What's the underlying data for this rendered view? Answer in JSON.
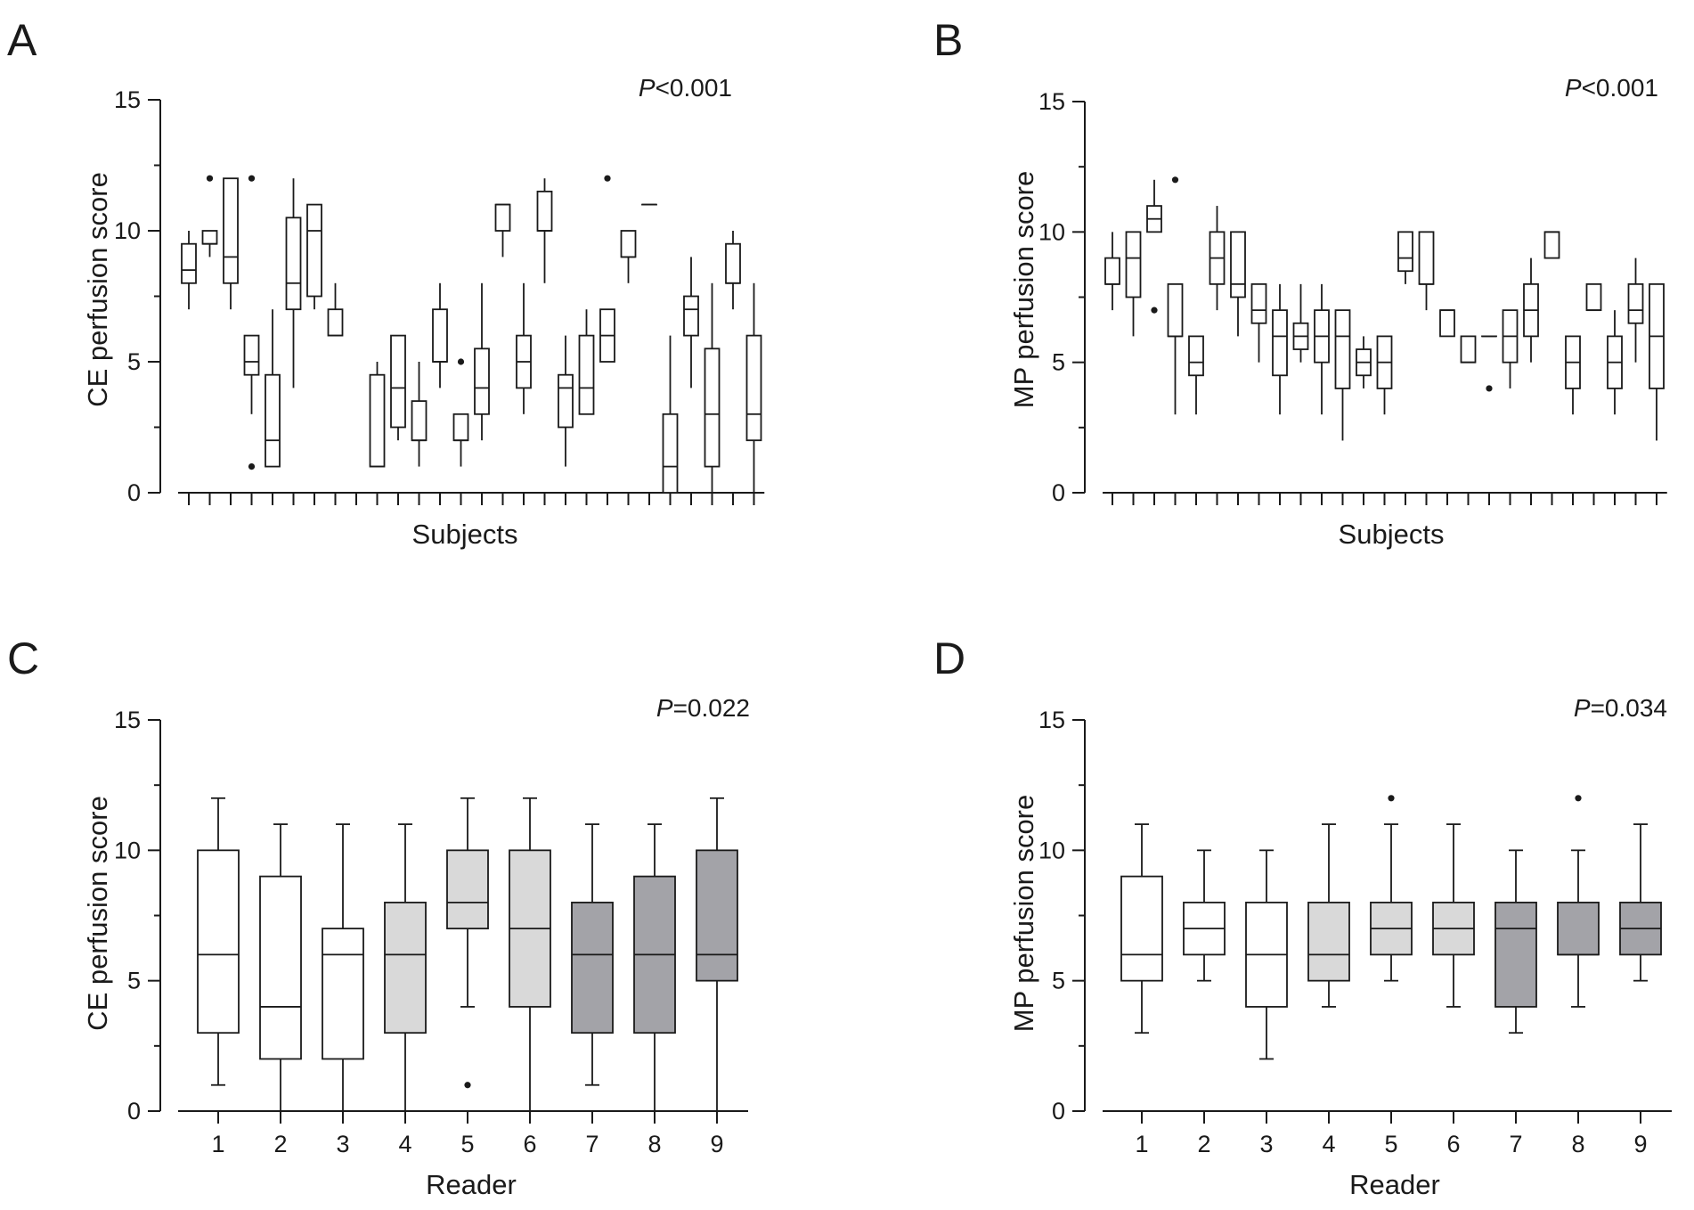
{
  "figure": {
    "colors": {
      "axis": "#1a1a1a",
      "box_white": "#ffffff",
      "box_light": "#d9d9d9",
      "box_dark": "#a3a3a8"
    }
  },
  "chart_data": [
    {
      "panel": "A",
      "type": "boxplot",
      "pvalue_label": "P",
      "pvalue_text": "<0.001",
      "xlabel": "Subjects",
      "ylabel": "CE perfusion score",
      "ylim": [
        0,
        15
      ],
      "yticks": [
        0,
        5,
        10,
        15
      ],
      "show_category_labels": false,
      "boxes": [
        {
          "category": "1",
          "min": 7,
          "q1": 8,
          "median": 8.5,
          "q3": 9.5,
          "max": 10,
          "outliers": [],
          "shade": "white"
        },
        {
          "category": "2",
          "min": 9,
          "q1": 9.5,
          "median": 9.5,
          "q3": 10,
          "max": 10,
          "outliers": [
            12
          ],
          "shade": "white"
        },
        {
          "category": "3",
          "min": 7,
          "q1": 8,
          "median": 9,
          "q3": 12,
          "max": 12,
          "outliers": [],
          "shade": "white"
        },
        {
          "category": "4",
          "min": 3,
          "q1": 4.5,
          "median": 5,
          "q3": 6,
          "max": 6,
          "outliers": [
            12,
            1
          ],
          "shade": "white"
        },
        {
          "category": "5",
          "min": 1,
          "q1": 1,
          "median": 2,
          "q3": 4.5,
          "max": 7,
          "outliers": [],
          "shade": "white"
        },
        {
          "category": "6",
          "min": 4,
          "q1": 7,
          "median": 8,
          "q3": 10.5,
          "max": 12,
          "outliers": [],
          "shade": "white"
        },
        {
          "category": "7",
          "min": 7,
          "q1": 7.5,
          "median": 10,
          "q3": 11,
          "max": 11,
          "outliers": [],
          "shade": "white"
        },
        {
          "category": "8",
          "min": 6,
          "q1": 6,
          "median": 6,
          "q3": 7,
          "max": 8,
          "outliers": [],
          "shade": "white"
        },
        {
          "category": "9",
          "min": null,
          "q1": null,
          "median": null,
          "q3": null,
          "max": null,
          "outliers": [],
          "shade": "white"
        },
        {
          "category": "10",
          "min": 1,
          "q1": 1,
          "median": 1,
          "q3": 4.5,
          "max": 5,
          "outliers": [],
          "shade": "white"
        },
        {
          "category": "11",
          "min": 2,
          "q1": 2.5,
          "median": 4,
          "q3": 6,
          "max": 6,
          "outliers": [],
          "shade": "white"
        },
        {
          "category": "12",
          "min": 1,
          "q1": 2,
          "median": 2,
          "q3": 3.5,
          "max": 5,
          "outliers": [],
          "shade": "white"
        },
        {
          "category": "13",
          "min": 4,
          "q1": 5,
          "median": 5,
          "q3": 7,
          "max": 8,
          "outliers": [],
          "shade": "white"
        },
        {
          "category": "14",
          "min": 1,
          "q1": 2,
          "median": 2,
          "q3": 3,
          "max": 3,
          "outliers": [
            5
          ],
          "shade": "white"
        },
        {
          "category": "15",
          "min": 2,
          "q1": 3,
          "median": 4,
          "q3": 5.5,
          "max": 8,
          "outliers": [],
          "shade": "white"
        },
        {
          "category": "16",
          "min": 9,
          "q1": 10,
          "median": 11,
          "q3": 11,
          "max": 11,
          "outliers": [],
          "shade": "white"
        },
        {
          "category": "17",
          "min": 3,
          "q1": 4,
          "median": 5,
          "q3": 6,
          "max": 8,
          "outliers": [],
          "shade": "white"
        },
        {
          "category": "18",
          "min": 8,
          "q1": 10,
          "median": 10,
          "q3": 11.5,
          "max": 12,
          "outliers": [],
          "shade": "white"
        },
        {
          "category": "19",
          "min": 1,
          "q1": 2.5,
          "median": 4,
          "q3": 4.5,
          "max": 6,
          "outliers": [],
          "shade": "white"
        },
        {
          "category": "20",
          "min": 3,
          "q1": 3,
          "median": 4,
          "q3": 6,
          "max": 7,
          "outliers": [],
          "shade": "white"
        },
        {
          "category": "21",
          "min": 5,
          "q1": 5,
          "median": 6,
          "q3": 7,
          "max": 7,
          "outliers": [
            12
          ],
          "shade": "white"
        },
        {
          "category": "22",
          "min": 8,
          "q1": 9,
          "median": 9,
          "q3": 10,
          "max": 10,
          "outliers": [],
          "shade": "white"
        },
        {
          "category": "23",
          "min": 11,
          "q1": 11,
          "median": 11,
          "q3": 11,
          "max": 11,
          "outliers": [],
          "shade": "white"
        },
        {
          "category": "24",
          "min": 0,
          "q1": 0,
          "median": 1,
          "q3": 3,
          "max": 6,
          "outliers": [],
          "shade": "white"
        },
        {
          "category": "25",
          "min": 4,
          "q1": 6,
          "median": 7,
          "q3": 7.5,
          "max": 9,
          "outliers": [],
          "shade": "white"
        },
        {
          "category": "26",
          "min": 0,
          "q1": 1,
          "median": 3,
          "q3": 5.5,
          "max": 8,
          "outliers": [],
          "shade": "white"
        },
        {
          "category": "27",
          "min": 7,
          "q1": 8,
          "median": 8,
          "q3": 9.5,
          "max": 10,
          "outliers": [],
          "shade": "white"
        },
        {
          "category": "28",
          "min": 0,
          "q1": 2,
          "median": 3,
          "q3": 6,
          "max": 8,
          "outliers": [],
          "shade": "white"
        }
      ]
    },
    {
      "panel": "B",
      "type": "boxplot",
      "pvalue_label": "P",
      "pvalue_text": "<0.001",
      "xlabel": "Subjects",
      "ylabel": "MP perfusion score",
      "ylim": [
        0,
        15
      ],
      "yticks": [
        0,
        5,
        10,
        15
      ],
      "show_category_labels": false,
      "boxes": [
        {
          "category": "1",
          "min": 7,
          "q1": 8,
          "median": 8,
          "q3": 9,
          "max": 10,
          "outliers": [],
          "shade": "white"
        },
        {
          "category": "2",
          "min": 6,
          "q1": 7.5,
          "median": 9,
          "q3": 10,
          "max": 10,
          "outliers": [],
          "shade": "white"
        },
        {
          "category": "3",
          "min": 10,
          "q1": 10,
          "median": 10.5,
          "q3": 11,
          "max": 12,
          "outliers": [
            7
          ],
          "shade": "white"
        },
        {
          "category": "4",
          "min": 3,
          "q1": 6,
          "median": 6,
          "q3": 8,
          "max": 8,
          "outliers": [
            12
          ],
          "shade": "white"
        },
        {
          "category": "5",
          "min": 3,
          "q1": 4.5,
          "median": 5,
          "q3": 6,
          "max": 6,
          "outliers": [],
          "shade": "white"
        },
        {
          "category": "6",
          "min": 7,
          "q1": 8,
          "median": 9,
          "q3": 10,
          "max": 11,
          "outliers": [],
          "shade": "white"
        },
        {
          "category": "7",
          "min": 6,
          "q1": 7.5,
          "median": 8,
          "q3": 10,
          "max": 10,
          "outliers": [],
          "shade": "white"
        },
        {
          "category": "8",
          "min": 5,
          "q1": 6.5,
          "median": 7,
          "q3": 8,
          "max": 8,
          "outliers": [],
          "shade": "white"
        },
        {
          "category": "9",
          "min": 3,
          "q1": 4.5,
          "median": 6,
          "q3": 7,
          "max": 8,
          "outliers": [],
          "shade": "white"
        },
        {
          "category": "10",
          "min": 5,
          "q1": 5.5,
          "median": 6,
          "q3": 6.5,
          "max": 8,
          "outliers": [],
          "shade": "white"
        },
        {
          "category": "11",
          "min": 3,
          "q1": 5,
          "median": 6,
          "q3": 7,
          "max": 8,
          "outliers": [],
          "shade": "white"
        },
        {
          "category": "12",
          "min": 2,
          "q1": 4,
          "median": 6,
          "q3": 7,
          "max": 7,
          "outliers": [],
          "shade": "white"
        },
        {
          "category": "13",
          "min": 4,
          "q1": 4.5,
          "median": 5,
          "q3": 5.5,
          "max": 6,
          "outliers": [],
          "shade": "white"
        },
        {
          "category": "14",
          "min": 3,
          "q1": 4,
          "median": 5,
          "q3": 6,
          "max": 6,
          "outliers": [],
          "shade": "white"
        },
        {
          "category": "15",
          "min": 8,
          "q1": 8.5,
          "median": 9,
          "q3": 10,
          "max": 10,
          "outliers": [],
          "shade": "white"
        },
        {
          "category": "16",
          "min": 7,
          "q1": 8,
          "median": 8,
          "q3": 10,
          "max": 10,
          "outliers": [],
          "shade": "white"
        },
        {
          "category": "17",
          "min": 6,
          "q1": 6,
          "median": 7,
          "q3": 7,
          "max": 7,
          "outliers": [],
          "shade": "white"
        },
        {
          "category": "18",
          "min": 5,
          "q1": 5,
          "median": 5,
          "q3": 6,
          "max": 6,
          "outliers": [],
          "shade": "white"
        },
        {
          "category": "19",
          "min": 6,
          "q1": 6,
          "median": 6,
          "q3": 6,
          "max": 6,
          "outliers": [
            4
          ],
          "shade": "white"
        },
        {
          "category": "20",
          "min": 4,
          "q1": 5,
          "median": 6,
          "q3": 7,
          "max": 7,
          "outliers": [],
          "shade": "white"
        },
        {
          "category": "21",
          "min": 5,
          "q1": 6,
          "median": 7,
          "q3": 8,
          "max": 9,
          "outliers": [],
          "shade": "white"
        },
        {
          "category": "22",
          "min": 9,
          "q1": 9,
          "median": 10,
          "q3": 10,
          "max": 10,
          "outliers": [],
          "shade": "white"
        },
        {
          "category": "23",
          "min": 3,
          "q1": 4,
          "median": 5,
          "q3": 6,
          "max": 6,
          "outliers": [],
          "shade": "white"
        },
        {
          "category": "24",
          "min": 7,
          "q1": 7,
          "median": 7,
          "q3": 8,
          "max": 8,
          "outliers": [],
          "shade": "white"
        },
        {
          "category": "25",
          "min": 3,
          "q1": 4,
          "median": 5,
          "q3": 6,
          "max": 7,
          "outliers": [],
          "shade": "white"
        },
        {
          "category": "26",
          "min": 5,
          "q1": 6.5,
          "median": 7,
          "q3": 8,
          "max": 9,
          "outliers": [],
          "shade": "white"
        },
        {
          "category": "27",
          "min": 2,
          "q1": 4,
          "median": 6,
          "q3": 8,
          "max": 8,
          "outliers": [],
          "shade": "white"
        }
      ]
    },
    {
      "panel": "C",
      "type": "boxplot",
      "pvalue_label": "P",
      "pvalue_text": "=0.022",
      "xlabel": "Reader",
      "ylabel": "CE perfusion score",
      "ylim": [
        0,
        15
      ],
      "yticks": [
        0,
        5,
        10,
        15
      ],
      "show_category_labels": true,
      "boxes": [
        {
          "category": "1",
          "min": 1,
          "q1": 3,
          "median": 6,
          "q3": 10,
          "max": 12,
          "outliers": [],
          "shade": "white"
        },
        {
          "category": "2",
          "min": 0,
          "q1": 2,
          "median": 4,
          "q3": 9,
          "max": 11,
          "outliers": [],
          "shade": "white"
        },
        {
          "category": "3",
          "min": 0,
          "q1": 2,
          "median": 6,
          "q3": 7,
          "max": 11,
          "outliers": [],
          "shade": "white"
        },
        {
          "category": "4",
          "min": 0,
          "q1": 3,
          "median": 6,
          "q3": 8,
          "max": 11,
          "outliers": [],
          "shade": "light"
        },
        {
          "category": "5",
          "min": 4,
          "q1": 7,
          "median": 8,
          "q3": 10,
          "max": 12,
          "outliers": [
            1
          ],
          "shade": "light"
        },
        {
          "category": "6",
          "min": 0,
          "q1": 4,
          "median": 7,
          "q3": 10,
          "max": 12,
          "outliers": [],
          "shade": "light"
        },
        {
          "category": "7",
          "min": 1,
          "q1": 3,
          "median": 6,
          "q3": 8,
          "max": 11,
          "outliers": [],
          "shade": "dark"
        },
        {
          "category": "8",
          "min": 0,
          "q1": 3,
          "median": 6,
          "q3": 9,
          "max": 11,
          "outliers": [],
          "shade": "dark"
        },
        {
          "category": "9",
          "min": 0,
          "q1": 5,
          "median": 6,
          "q3": 10,
          "max": 12,
          "outliers": [],
          "shade": "dark"
        }
      ]
    },
    {
      "panel": "D",
      "type": "boxplot",
      "pvalue_label": "P",
      "pvalue_text": "=0.034",
      "xlabel": "Reader",
      "ylabel": "MP perfusion score",
      "ylim": [
        0,
        15
      ],
      "yticks": [
        0,
        5,
        10,
        15
      ],
      "show_category_labels": true,
      "boxes": [
        {
          "category": "1",
          "min": 3,
          "q1": 5,
          "median": 6,
          "q3": 9,
          "max": 11,
          "outliers": [],
          "shade": "white"
        },
        {
          "category": "2",
          "min": 5,
          "q1": 6,
          "median": 7,
          "q3": 8,
          "max": 10,
          "outliers": [],
          "shade": "white"
        },
        {
          "category": "3",
          "min": 2,
          "q1": 4,
          "median": 6,
          "q3": 8,
          "max": 10,
          "outliers": [],
          "shade": "white"
        },
        {
          "category": "4",
          "min": 4,
          "q1": 5,
          "median": 6,
          "q3": 8,
          "max": 11,
          "outliers": [],
          "shade": "light"
        },
        {
          "category": "5",
          "min": 5,
          "q1": 6,
          "median": 7,
          "q3": 8,
          "max": 11,
          "outliers": [
            12
          ],
          "shade": "light"
        },
        {
          "category": "6",
          "min": 4,
          "q1": 6,
          "median": 7,
          "q3": 8,
          "max": 11,
          "outliers": [],
          "shade": "light"
        },
        {
          "category": "7",
          "min": 3,
          "q1": 4,
          "median": 7,
          "q3": 8,
          "max": 10,
          "outliers": [],
          "shade": "dark"
        },
        {
          "category": "8",
          "min": 4,
          "q1": 6,
          "median": 6,
          "q3": 8,
          "max": 10,
          "outliers": [
            12
          ],
          "shade": "dark"
        },
        {
          "category": "9",
          "min": 5,
          "q1": 6,
          "median": 7,
          "q3": 8,
          "max": 11,
          "outliers": [],
          "shade": "dark"
        }
      ]
    }
  ]
}
